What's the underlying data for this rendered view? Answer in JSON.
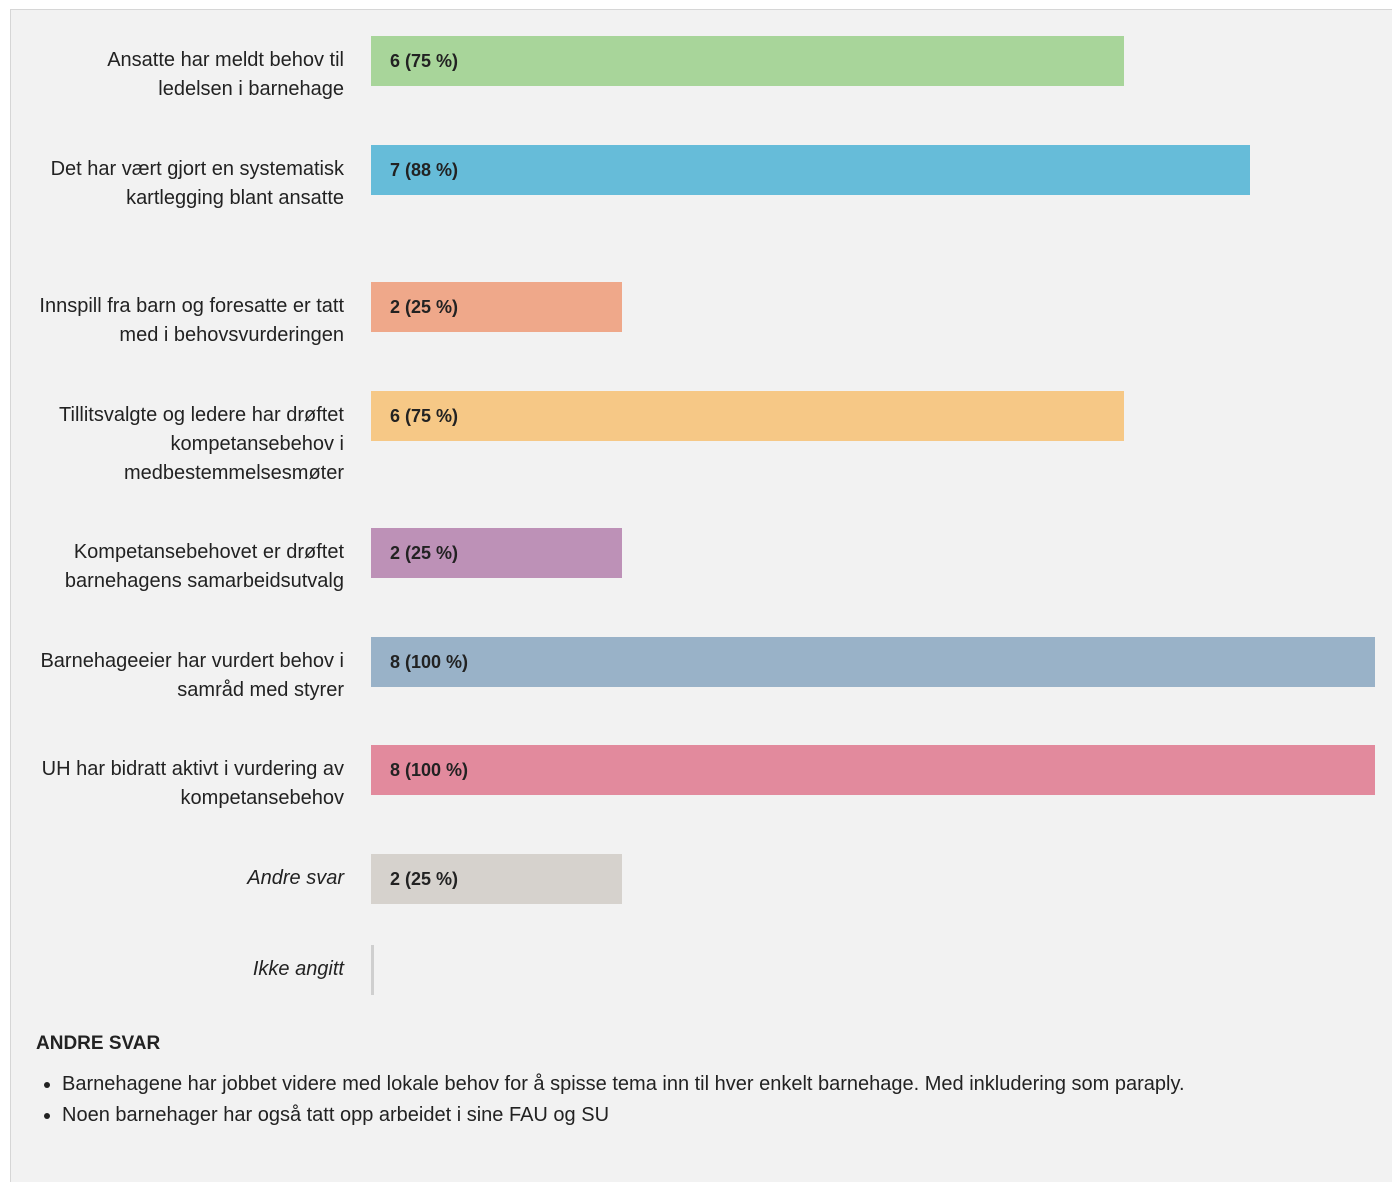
{
  "chart_data": {
    "type": "bar",
    "orientation": "horizontal",
    "xlim": [
      0,
      8
    ],
    "categories": [
      "Ansatte har meldt behov til ledelsen i barnehage",
      "Det har vært gjort en systematisk kartlegging blant ansatte",
      "Innspill fra barn og foresatte er tatt med i behovsvurderingen",
      "Tillitsvalgte og ledere har drøftet kompetansebehov i medbestemmelsesmøter",
      "Kompetansebehovet er drøftet barnehagens samarbeidsutvalg",
      "Barnehageeier har vurdert behov i samråd med styrer",
      "UH har bidratt aktivt i vurdering av kompetansebehov",
      "Andre svar",
      "Ikke angitt"
    ],
    "values": [
      6,
      7,
      2,
      6,
      2,
      8,
      8,
      2,
      0
    ],
    "value_labels": [
      "6 (75 %)",
      "7 (88 %)",
      "2 (25 %)",
      "6 (75 %)",
      "2 (25 %)",
      "8 (100 %)",
      "8 (100 %)",
      "2 (25 %)",
      ""
    ],
    "colors": [
      "#a8d59a",
      "#66bcd9",
      "#efa88a",
      "#f6c886",
      "#bd91b7",
      "#99b2c8",
      "#e28a9d",
      "#d6d2cd",
      "#cfcfcf"
    ],
    "italic_categories": [
      "Andre svar",
      "Ikke angitt"
    ],
    "grid": false,
    "legend": "none"
  },
  "other_answers": {
    "title": "ANDRE SVAR",
    "items": [
      "Barnehagene har jobbet videre med lokale behov for å spisse tema inn til hver enkelt barnehage. Med inkludering som paraply.",
      "Noen barnehager har også tatt opp arbeidet i sine FAU og SU"
    ]
  }
}
